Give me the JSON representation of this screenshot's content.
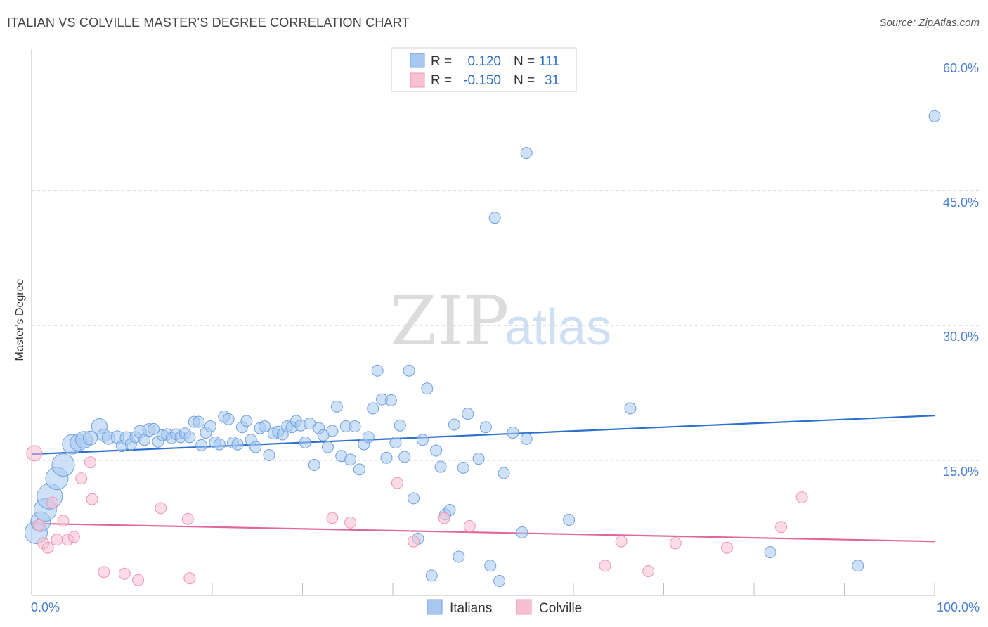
{
  "title": "ITALIAN VS COLVILLE MASTER'S DEGREE CORRELATION CHART",
  "source": "Source: ZipAtlas.com",
  "watermark": {
    "zip": "ZIP",
    "atlas": "atlas"
  },
  "colors": {
    "italians_fill": "#a8c8f0",
    "italians_stroke": "#6fa0e0",
    "italians_line": "#2b6fcf",
    "colville_fill": "#f7c0d2",
    "colville_stroke": "#ee94b3",
    "colville_line": "#e0679a",
    "value_blue": "#2b6fcf",
    "label_dark": "#333333"
  },
  "legend": {
    "rows": [
      {
        "r_label": "R =",
        "r_value": "0.120",
        "n_label": "N =",
        "n_value": "111"
      },
      {
        "r_label": "R =",
        "r_value": "-0.150",
        "n_label": "N =",
        "n_value": "31"
      }
    ]
  },
  "chart_data": {
    "type": "scatter",
    "title": "ITALIAN VS COLVILLE MASTER'S DEGREE CORRELATION CHART",
    "xlabel": "",
    "ylabel": "Master's Degree",
    "xlim": [
      0,
      100
    ],
    "ylim": [
      0,
      62
    ],
    "x_tick_labels": [
      "0.0%",
      "100.0%"
    ],
    "y_ticks": [
      15,
      30,
      45,
      60
    ],
    "y_tick_labels": [
      "15.0%",
      "30.0%",
      "45.0%",
      "60.0%"
    ],
    "grid": true,
    "legend_position": "top-center",
    "series": [
      {
        "name": "Italians",
        "trend": {
          "x": [
            0,
            100
          ],
          "y": [
            15.7,
            20.0
          ]
        },
        "points": [
          [
            0.5,
            7.0,
            16
          ],
          [
            1.0,
            8.2,
            14
          ],
          [
            1.5,
            9.5,
            16
          ],
          [
            2.0,
            11.0,
            18
          ],
          [
            2.8,
            13.0,
            16
          ],
          [
            3.5,
            14.5,
            16
          ],
          [
            4.5,
            16.8,
            14
          ],
          [
            5.2,
            17.0,
            12
          ],
          [
            5.8,
            17.3,
            12
          ],
          [
            6.5,
            17.5,
            10
          ],
          [
            7.5,
            18.8,
            11
          ],
          [
            8.0,
            17.8,
            9
          ],
          [
            8.5,
            17.5,
            9
          ],
          [
            9.5,
            17.6,
            9
          ],
          [
            10.0,
            16.6,
            8
          ],
          [
            10.5,
            17.5,
            9
          ],
          [
            11.0,
            16.8,
            8
          ],
          [
            11.5,
            17.6,
            8
          ],
          [
            12.0,
            18.2,
            9
          ],
          [
            12.5,
            17.3,
            8
          ],
          [
            13.0,
            18.4,
            9
          ],
          [
            13.5,
            18.5,
            8
          ],
          [
            14.0,
            17.1,
            8
          ],
          [
            14.5,
            17.8,
            8
          ],
          [
            15.0,
            17.9,
            8
          ],
          [
            15.5,
            17.5,
            8
          ],
          [
            16.0,
            17.9,
            8
          ],
          [
            16.5,
            17.6,
            8
          ],
          [
            17.0,
            18.0,
            8
          ],
          [
            17.5,
            17.6,
            8
          ],
          [
            18.0,
            19.3,
            8
          ],
          [
            18.5,
            19.3,
            8
          ],
          [
            18.8,
            16.7,
            8
          ],
          [
            19.3,
            18.1,
            8
          ],
          [
            19.8,
            18.8,
            8
          ],
          [
            20.3,
            17.0,
            8
          ],
          [
            20.8,
            16.8,
            8
          ],
          [
            21.3,
            19.9,
            8
          ],
          [
            21.8,
            19.6,
            8
          ],
          [
            22.3,
            17.0,
            8
          ],
          [
            22.8,
            16.8,
            8
          ],
          [
            23.3,
            18.7,
            8
          ],
          [
            23.8,
            19.4,
            8
          ],
          [
            24.3,
            17.3,
            8
          ],
          [
            24.8,
            16.5,
            8
          ],
          [
            25.3,
            18.6,
            8
          ],
          [
            25.8,
            18.8,
            8
          ],
          [
            26.3,
            15.6,
            8
          ],
          [
            26.8,
            18.0,
            8
          ],
          [
            27.3,
            18.2,
            8
          ],
          [
            27.8,
            17.9,
            8
          ],
          [
            28.3,
            18.8,
            8
          ],
          [
            28.8,
            18.7,
            8
          ],
          [
            29.3,
            19.4,
            8
          ],
          [
            29.8,
            18.9,
            8
          ],
          [
            30.3,
            17.0,
            8
          ],
          [
            30.8,
            19.1,
            8
          ],
          [
            31.3,
            14.5,
            8
          ],
          [
            31.8,
            18.6,
            8
          ],
          [
            32.3,
            17.8,
            8
          ],
          [
            32.8,
            16.5,
            8
          ],
          [
            33.3,
            18.3,
            8
          ],
          [
            33.8,
            21.0,
            8
          ],
          [
            34.3,
            15.5,
            8
          ],
          [
            34.8,
            18.8,
            8
          ],
          [
            35.3,
            15.1,
            8
          ],
          [
            35.8,
            18.8,
            8
          ],
          [
            36.3,
            14.0,
            8
          ],
          [
            36.8,
            16.8,
            8
          ],
          [
            37.3,
            17.6,
            8
          ],
          [
            37.8,
            20.8,
            8
          ],
          [
            38.3,
            25.0,
            8
          ],
          [
            38.8,
            21.8,
            8
          ],
          [
            39.3,
            15.3,
            8
          ],
          [
            39.8,
            21.7,
            8
          ],
          [
            40.3,
            17.0,
            8
          ],
          [
            40.8,
            18.9,
            8
          ],
          [
            41.3,
            15.4,
            8
          ],
          [
            41.8,
            25.0,
            8
          ],
          [
            42.3,
            10.8,
            8
          ],
          [
            42.8,
            6.3,
            8
          ],
          [
            43.3,
            17.3,
            8
          ],
          [
            43.8,
            23.0,
            8
          ],
          [
            44.3,
            2.2,
            8
          ],
          [
            44.8,
            16.1,
            8
          ],
          [
            45.3,
            14.3,
            8
          ],
          [
            45.8,
            9.0,
            8
          ],
          [
            46.3,
            9.5,
            8
          ],
          [
            46.8,
            19.0,
            8
          ],
          [
            47.3,
            4.3,
            8
          ],
          [
            47.8,
            14.2,
            8
          ],
          [
            48.3,
            20.2,
            8
          ],
          [
            49.5,
            15.2,
            8
          ],
          [
            50.3,
            18.7,
            8
          ],
          [
            50.8,
            3.3,
            8
          ],
          [
            51.3,
            42.0,
            8
          ],
          [
            51.8,
            1.6,
            8
          ],
          [
            52.3,
            13.6,
            8
          ],
          [
            53.3,
            18.1,
            8
          ],
          [
            54.3,
            7.0,
            8
          ],
          [
            54.8,
            17.4,
            8
          ],
          [
            54.8,
            49.2,
            8
          ],
          [
            59.5,
            8.4,
            8
          ],
          [
            66.3,
            20.8,
            8
          ],
          [
            81.8,
            4.8,
            8
          ],
          [
            91.5,
            3.3,
            8
          ],
          [
            100.0,
            53.3,
            8
          ]
        ]
      },
      {
        "name": "Colville",
        "trend": {
          "x": [
            0,
            100
          ],
          "y": [
            8.0,
            6.0
          ]
        },
        "points": [
          [
            0.3,
            15.8,
            11
          ],
          [
            0.8,
            7.8,
            8
          ],
          [
            1.3,
            5.8,
            8
          ],
          [
            1.8,
            5.3,
            8
          ],
          [
            2.3,
            10.3,
            8
          ],
          [
            2.8,
            6.2,
            8
          ],
          [
            3.5,
            8.3,
            8
          ],
          [
            4.0,
            6.2,
            8
          ],
          [
            4.7,
            6.5,
            8
          ],
          [
            5.5,
            13.0,
            8
          ],
          [
            6.5,
            14.8,
            8
          ],
          [
            6.7,
            10.7,
            8
          ],
          [
            8.0,
            2.6,
            8
          ],
          [
            10.3,
            2.4,
            8
          ],
          [
            11.8,
            1.7,
            8
          ],
          [
            14.3,
            9.7,
            8
          ],
          [
            17.3,
            8.5,
            8
          ],
          [
            17.5,
            1.9,
            8
          ],
          [
            33.3,
            8.6,
            8
          ],
          [
            35.3,
            8.1,
            8
          ],
          [
            40.5,
            12.5,
            8
          ],
          [
            42.3,
            6.0,
            8
          ],
          [
            45.7,
            8.6,
            8
          ],
          [
            48.5,
            7.7,
            8
          ],
          [
            63.5,
            3.3,
            8
          ],
          [
            65.3,
            6.0,
            8
          ],
          [
            68.3,
            2.7,
            8
          ],
          [
            71.3,
            5.8,
            8
          ],
          [
            77.0,
            5.3,
            8
          ],
          [
            83.0,
            7.6,
            8
          ],
          [
            85.3,
            10.9,
            8
          ]
        ]
      }
    ]
  },
  "bottom_legend": {
    "items": [
      "Italians",
      "Colville"
    ]
  }
}
